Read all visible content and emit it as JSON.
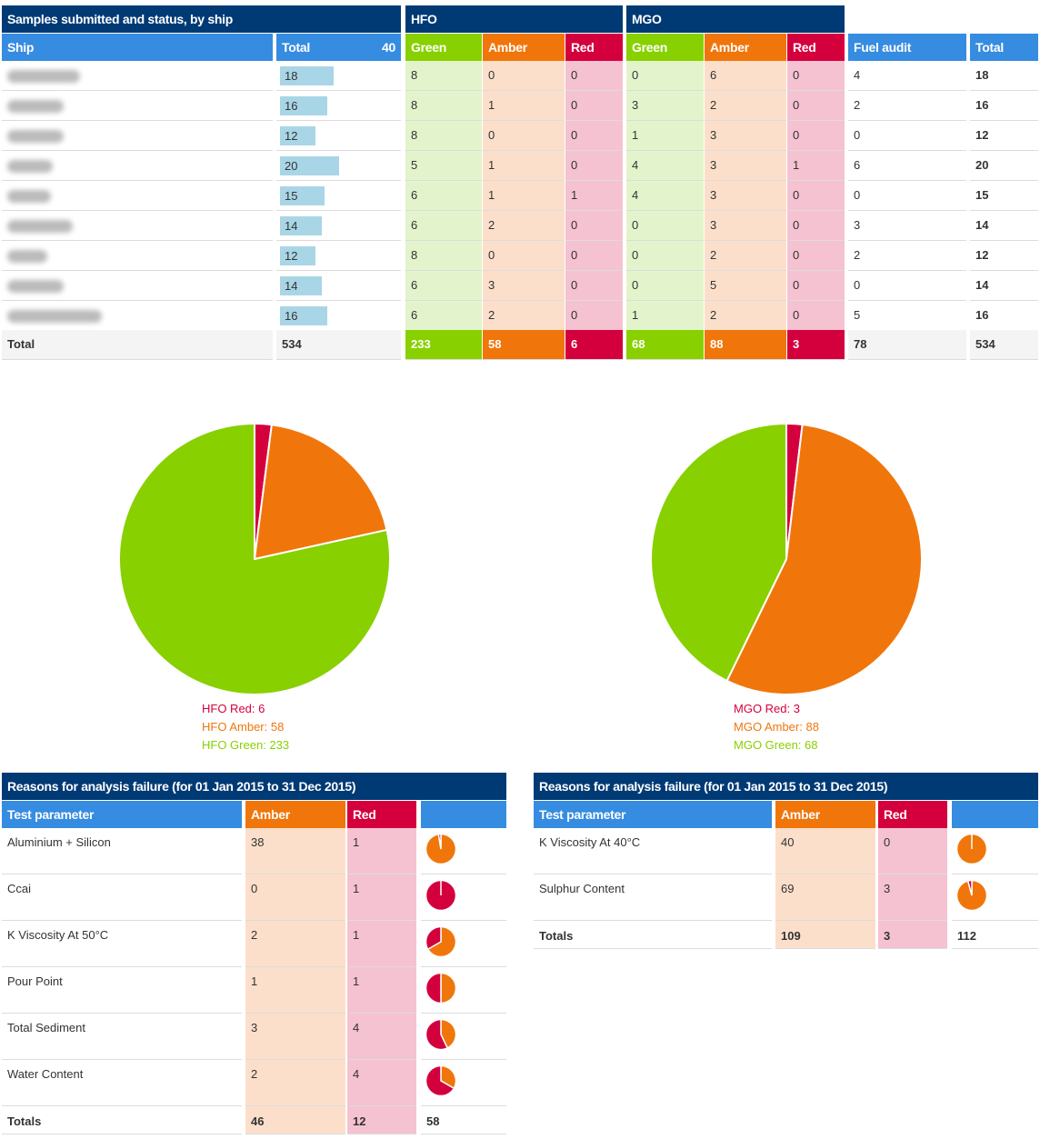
{
  "top": {
    "title": "Samples submitted and status, by ship",
    "hfo_title": "HFO",
    "mgo_title": "MGO",
    "headers": {
      "ship": "Ship",
      "total": "Total",
      "total_max": "40",
      "green": "Green",
      "amber": "Amber",
      "red": "Red",
      "fuel_audit": "Fuel audit",
      "grand_total": "Total"
    },
    "rows": [
      {
        "total": 18,
        "hfo": [
          8,
          0,
          0
        ],
        "mgo": [
          0,
          6,
          0
        ],
        "audit": 4,
        "sum": 18
      },
      {
        "total": 16,
        "hfo": [
          8,
          1,
          0
        ],
        "mgo": [
          3,
          2,
          0
        ],
        "audit": 2,
        "sum": 16
      },
      {
        "total": 12,
        "hfo": [
          8,
          0,
          0
        ],
        "mgo": [
          1,
          3,
          0
        ],
        "audit": 0,
        "sum": 12
      },
      {
        "total": 20,
        "hfo": [
          5,
          1,
          0
        ],
        "mgo": [
          4,
          3,
          1
        ],
        "audit": 6,
        "sum": 20
      },
      {
        "total": 15,
        "hfo": [
          6,
          1,
          1
        ],
        "mgo": [
          4,
          3,
          0
        ],
        "audit": 0,
        "sum": 15
      },
      {
        "total": 14,
        "hfo": [
          6,
          2,
          0
        ],
        "mgo": [
          0,
          3,
          0
        ],
        "audit": 3,
        "sum": 14
      },
      {
        "total": 12,
        "hfo": [
          8,
          0,
          0
        ],
        "mgo": [
          0,
          2,
          0
        ],
        "audit": 2,
        "sum": 12
      },
      {
        "total": 14,
        "hfo": [
          6,
          3,
          0
        ],
        "mgo": [
          0,
          5,
          0
        ],
        "audit": 0,
        "sum": 14
      },
      {
        "total": 16,
        "hfo": [
          6,
          2,
          0
        ],
        "mgo": [
          1,
          2,
          0
        ],
        "audit": 5,
        "sum": 16
      }
    ],
    "totals": {
      "label": "Total",
      "total": "534",
      "hfo": [
        "233",
        "58",
        "6"
      ],
      "mgo": [
        "68",
        "88",
        "3"
      ],
      "audit": "78",
      "sum": "534"
    }
  },
  "pies": [
    {
      "red": 6,
      "amber": 58,
      "green": 233,
      "labels": [
        "HFO Red: 6",
        "HFO Amber: 58",
        "HFO Green: 233"
      ]
    },
    {
      "red": 3,
      "amber": 88,
      "green": 68,
      "labels": [
        "MGO Red: 3",
        "MGO Amber: 88",
        "MGO Green: 68"
      ]
    }
  ],
  "colors": {
    "green": "#88d000",
    "amber": "#f0760c",
    "red": "#d4003e",
    "navy": "#003a75",
    "blue": "#368ce0"
  },
  "failures": [
    {
      "title": "Reasons for analysis failure (for 01 Jan 2015 to 31 Dec 2015)",
      "headers": {
        "param": "Test parameter",
        "amber": "Amber",
        "red": "Red"
      },
      "rows": [
        {
          "param": "Aluminium + Silicon",
          "amber": 38,
          "red": 1
        },
        {
          "param": "Ccai",
          "amber": 0,
          "red": 1
        },
        {
          "param": "K Viscosity At 50°C",
          "amber": 2,
          "red": 1
        },
        {
          "param": "Pour Point",
          "amber": 1,
          "red": 1
        },
        {
          "param": "Total Sediment",
          "amber": 3,
          "red": 4
        },
        {
          "param": "Water Content",
          "amber": 2,
          "red": 4
        }
      ],
      "totals": {
        "label": "Totals",
        "amber": "46",
        "red": "12",
        "sum": "58"
      }
    },
    {
      "title": "Reasons for analysis failure (for 01 Jan 2015 to 31 Dec 2015)",
      "headers": {
        "param": "Test parameter",
        "amber": "Amber",
        "red": "Red"
      },
      "rows": [
        {
          "param": "K Viscosity At 40°C",
          "amber": 40,
          "red": 0
        },
        {
          "param": "Sulphur Content",
          "amber": 69,
          "red": 3
        }
      ],
      "totals": {
        "label": "Totals",
        "amber": "109",
        "red": "3",
        "sum": "112"
      }
    }
  ]
}
